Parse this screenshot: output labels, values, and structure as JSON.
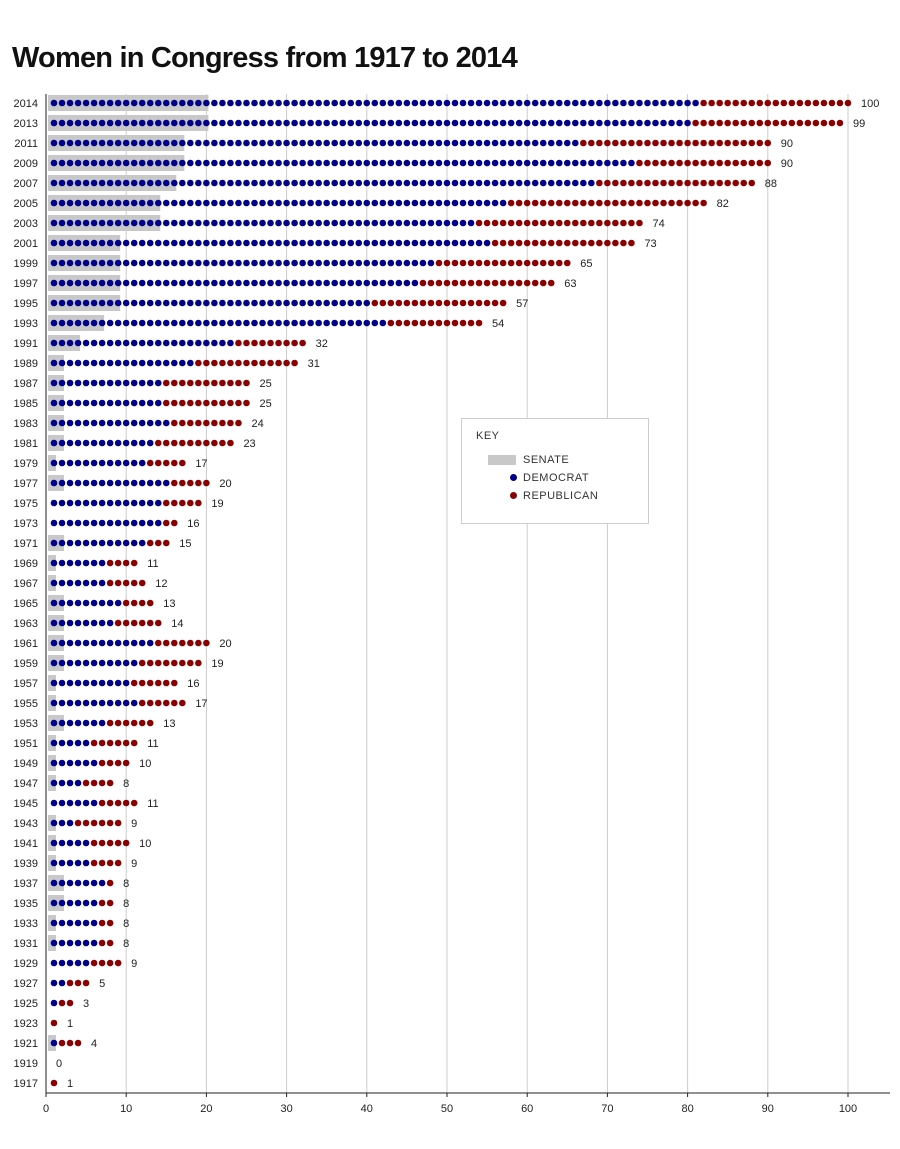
{
  "title": "Women in Congress from 1917 to 2014",
  "colors": {
    "democrat": "#00008b",
    "republican": "#8b0000",
    "senate": "#c8c8c8",
    "grid": "#cccccc"
  },
  "legend": {
    "title": "KEY",
    "senate": "SENATE",
    "democrat": "DEMOCRAT",
    "republican": "REPUBLICAN"
  },
  "chart_data": {
    "type": "bar",
    "title": "Women in Congress from 1917 to 2014",
    "xlim": [
      0,
      105
    ],
    "x_ticks": [
      0,
      10,
      20,
      30,
      40,
      50,
      60,
      70,
      80,
      90,
      100
    ],
    "grid": true,
    "legend_position": "middle-right",
    "rows": [
      {
        "year": "2014",
        "democrat": 81,
        "republican": 19,
        "senate": 20,
        "total": 100
      },
      {
        "year": "2013",
        "democrat": 80,
        "republican": 19,
        "senate": 20,
        "total": 99
      },
      {
        "year": "2011",
        "democrat": 66,
        "republican": 24,
        "senate": 17,
        "total": 90
      },
      {
        "year": "2009",
        "democrat": 73,
        "republican": 17,
        "senate": 17,
        "total": 90
      },
      {
        "year": "2007",
        "democrat": 68,
        "republican": 20,
        "senate": 16,
        "total": 88
      },
      {
        "year": "2005",
        "democrat": 57,
        "republican": 25,
        "senate": 14,
        "total": 82
      },
      {
        "year": "2003",
        "democrat": 53,
        "republican": 21,
        "senate": 14,
        "total": 74
      },
      {
        "year": "2001",
        "democrat": 55,
        "republican": 18,
        "senate": 9,
        "total": 73
      },
      {
        "year": "1999",
        "democrat": 48,
        "republican": 17,
        "senate": 9,
        "total": 65
      },
      {
        "year": "1997",
        "democrat": 46,
        "republican": 17,
        "senate": 9,
        "total": 63
      },
      {
        "year": "1995",
        "democrat": 40,
        "republican": 17,
        "senate": 9,
        "total": 57
      },
      {
        "year": "1993",
        "democrat": 42,
        "republican": 12,
        "senate": 7,
        "total": 54
      },
      {
        "year": "1991",
        "democrat": 23,
        "republican": 9,
        "senate": 4,
        "total": 32
      },
      {
        "year": "1989",
        "democrat": 18,
        "republican": 13,
        "senate": 2,
        "total": 31
      },
      {
        "year": "1987",
        "democrat": 14,
        "republican": 11,
        "senate": 2,
        "total": 25
      },
      {
        "year": "1985",
        "democrat": 14,
        "republican": 11,
        "senate": 2,
        "total": 25
      },
      {
        "year": "1983",
        "democrat": 15,
        "republican": 9,
        "senate": 2,
        "total": 24
      },
      {
        "year": "1981",
        "democrat": 13,
        "republican": 10,
        "senate": 2,
        "total": 23
      },
      {
        "year": "1979",
        "democrat": 12,
        "republican": 5,
        "senate": 1,
        "total": 17
      },
      {
        "year": "1977",
        "democrat": 15,
        "republican": 5,
        "senate": 2,
        "total": 20
      },
      {
        "year": "1975",
        "democrat": 14,
        "republican": 5,
        "senate": 0,
        "total": 19
      },
      {
        "year": "1973",
        "democrat": 14,
        "republican": 2,
        "senate": 0,
        "total": 16
      },
      {
        "year": "1971",
        "democrat": 12,
        "republican": 3,
        "senate": 2,
        "total": 15
      },
      {
        "year": "1969",
        "democrat": 7,
        "republican": 4,
        "senate": 1,
        "total": 11
      },
      {
        "year": "1967",
        "democrat": 7,
        "republican": 5,
        "senate": 1,
        "total": 12
      },
      {
        "year": "1965",
        "democrat": 9,
        "republican": 4,
        "senate": 2,
        "total": 13
      },
      {
        "year": "1963",
        "democrat": 8,
        "republican": 6,
        "senate": 2,
        "total": 14
      },
      {
        "year": "1961",
        "democrat": 13,
        "republican": 7,
        "senate": 2,
        "total": 20
      },
      {
        "year": "1959",
        "democrat": 11,
        "republican": 8,
        "senate": 2,
        "total": 19
      },
      {
        "year": "1957",
        "democrat": 10,
        "republican": 6,
        "senate": 1,
        "total": 16
      },
      {
        "year": "1955",
        "democrat": 11,
        "republican": 6,
        "senate": 1,
        "total": 17
      },
      {
        "year": "1953",
        "democrat": 7,
        "republican": 6,
        "senate": 2,
        "total": 13
      },
      {
        "year": "1951",
        "democrat": 5,
        "republican": 6,
        "senate": 1,
        "total": 11
      },
      {
        "year": "1949",
        "democrat": 6,
        "republican": 4,
        "senate": 1,
        "total": 10
      },
      {
        "year": "1947",
        "democrat": 4,
        "republican": 4,
        "senate": 1,
        "total": 8
      },
      {
        "year": "1945",
        "democrat": 6,
        "republican": 5,
        "senate": 0,
        "total": 11
      },
      {
        "year": "1943",
        "democrat": 3,
        "republican": 6,
        "senate": 1,
        "total": 9
      },
      {
        "year": "1941",
        "democrat": 5,
        "republican": 5,
        "senate": 1,
        "total": 10
      },
      {
        "year": "1939",
        "democrat": 5,
        "republican": 4,
        "senate": 1,
        "total": 9
      },
      {
        "year": "1937",
        "democrat": 7,
        "republican": 1,
        "senate": 2,
        "total": 8
      },
      {
        "year": "1935",
        "democrat": 6,
        "republican": 2,
        "senate": 2,
        "total": 8
      },
      {
        "year": "1933",
        "democrat": 6,
        "republican": 2,
        "senate": 1,
        "total": 8
      },
      {
        "year": "1931",
        "democrat": 6,
        "republican": 2,
        "senate": 1,
        "total": 8
      },
      {
        "year": "1929",
        "democrat": 5,
        "republican": 4,
        "senate": 0,
        "total": 9
      },
      {
        "year": "1927",
        "democrat": 2,
        "republican": 3,
        "senate": 0,
        "total": 5
      },
      {
        "year": "1925",
        "democrat": 1,
        "republican": 2,
        "senate": 0,
        "total": 3
      },
      {
        "year": "1923",
        "democrat": 0,
        "republican": 1,
        "senate": 0,
        "total": 1
      },
      {
        "year": "1921",
        "democrat": 1,
        "republican": 3,
        "senate": 1,
        "total": 4
      },
      {
        "year": "1919",
        "democrat": 0,
        "republican": 0,
        "senate": 0,
        "total": 0
      },
      {
        "year": "1917",
        "democrat": 0,
        "republican": 1,
        "senate": 0,
        "total": 1
      }
    ]
  }
}
